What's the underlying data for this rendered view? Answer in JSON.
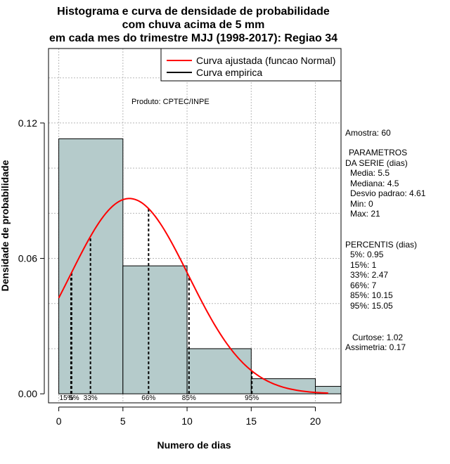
{
  "chart_data": {
    "type": "bar",
    "title_lines": [
      "Histograma e curva de densidade de probabilidade",
      "com chuva acima de 5 mm",
      "em cada mes do trimestre MJJ (1998-2017): Regiao 34"
    ],
    "xlabel": "Numero de dias",
    "ylabel": "Densidade de probabilidade",
    "xlim": [
      -0.8,
      22
    ],
    "ylim": [
      -0.004,
      0.153
    ],
    "x_ticks": [
      0,
      5,
      10,
      15,
      20
    ],
    "x_tick_labels": [
      "0",
      "5",
      "10",
      "15",
      "20"
    ],
    "y_ticks": [
      0.0,
      0.06,
      0.12
    ],
    "y_tick_labels": [
      "0.00",
      "0.06",
      "0.12"
    ],
    "grid_x": [
      0,
      5,
      10,
      15,
      20
    ],
    "grid_y": [
      0.02,
      0.04,
      0.06,
      0.08,
      0.1,
      0.12,
      0.14
    ],
    "bins": [
      {
        "x0": 0,
        "x1": 5,
        "density": 0.113
      },
      {
        "x0": 5,
        "x1": 10,
        "density": 0.0567
      },
      {
        "x0": 10,
        "x1": 15,
        "density": 0.02
      },
      {
        "x0": 15,
        "x1": 20,
        "density": 0.0067
      },
      {
        "x0": 20,
        "x1": 22,
        "density": 0.0033
      }
    ],
    "normal_curve": {
      "mean": 5.5,
      "sd": 4.61,
      "x_from": 0,
      "x_to": 21,
      "color": "#ff0000"
    },
    "percentile_lines": [
      {
        "label": "5%",
        "x": 0.95
      },
      {
        "label": "15%",
        "x": 1
      },
      {
        "label": "33%",
        "x": 2.47
      },
      {
        "label": "66%",
        "x": 7
      },
      {
        "label": "85%",
        "x": 10.15
      },
      {
        "label": "95%",
        "x": 15.05
      }
    ],
    "percentile_tick_text": [
      "15%",
      "5%",
      "33%",
      "66%",
      "85%",
      "95%"
    ],
    "legend": [
      {
        "label": "Curva ajustada (funcao Normal)",
        "color": "#ff0000"
      },
      {
        "label": "Curva empirica",
        "color": "#000000"
      }
    ],
    "legend_position": "top-right",
    "annotation": "Produto: CPTEC/INPE",
    "bar_color": "#b5cbcb"
  },
  "side_panel": {
    "sample": "Amostra: 60",
    "params_title_1": "PARAMETROS",
    "params_title_2": "DA SERIE (dias)",
    "media": "Media: 5.5",
    "mediana": "Mediana: 4.5",
    "desvio": "Desvio padrao: 4.61",
    "min": "Min: 0",
    "max": "Max: 21",
    "percentis_title": "PERCENTIS (dias)",
    "p5": "5%: 0.95",
    "p15": "15%: 1",
    "p33": "33%: 2.47",
    "p66": "66%: 7",
    "p85": "85%: 10.15",
    "p95": "95%: 15.05",
    "curtose": "Curtose: 1.02",
    "assimetria": "Assimetria: 0.17"
  }
}
